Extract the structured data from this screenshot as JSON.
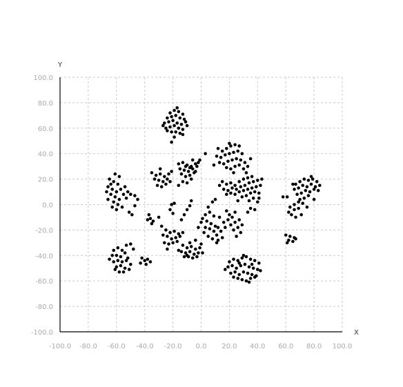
{
  "chart_data": {
    "type": "scatter",
    "title": "",
    "xlabel": "X",
    "ylabel": "Y",
    "xlim": [
      -100,
      100
    ],
    "ylim": [
      -100,
      100
    ],
    "x_ticks": [
      "-100.0",
      "-80.0",
      "-60.0",
      "-40.0",
      "-20.0",
      "0.0",
      "20.0",
      "40.0",
      "60.0",
      "80.0",
      "100.0"
    ],
    "y_ticks": [
      "100.0",
      "80.0",
      "60.0",
      "40.0",
      "20.0",
      "0.0",
      "-20.0",
      "-40.0",
      "-60.0",
      "-80.0",
      "-100.0"
    ],
    "grid": true,
    "legend": "none",
    "marker_color": "#000000",
    "grid_color": "#c8c8c8",
    "tick_color": "#aaaaaa",
    "points": [
      [
        -22,
        72
      ],
      [
        -19,
        74
      ],
      [
        -16,
        73
      ],
      [
        -13,
        71
      ],
      [
        -24,
        68
      ],
      [
        -21,
        69
      ],
      [
        -18,
        70
      ],
      [
        -15,
        68
      ],
      [
        -12,
        67
      ],
      [
        -26,
        64
      ],
      [
        -23,
        65
      ],
      [
        -20,
        66
      ],
      [
        -17,
        64
      ],
      [
        -14,
        63
      ],
      [
        -11,
        65
      ],
      [
        -25,
        60
      ],
      [
        -22,
        61
      ],
      [
        -19,
        62
      ],
      [
        -16,
        60
      ],
      [
        -13,
        59
      ],
      [
        -21,
        57
      ],
      [
        -18,
        57
      ],
      [
        -15,
        56
      ],
      [
        -19,
        53
      ],
      [
        -27,
        62
      ],
      [
        -10,
        62
      ],
      [
        -17,
        76
      ],
      [
        -21,
        49
      ],
      [
        -13,
        55
      ],
      [
        -24,
        58
      ],
      [
        -65,
        20
      ],
      [
        -62,
        18
      ],
      [
        -59,
        16
      ],
      [
        -66,
        14
      ],
      [
        -63,
        12
      ],
      [
        -60,
        10
      ],
      [
        -57,
        12
      ],
      [
        -64,
        8
      ],
      [
        -61,
        6
      ],
      [
        -58,
        4
      ],
      [
        -55,
        8
      ],
      [
        -52,
        10
      ],
      [
        -50,
        8
      ],
      [
        -62,
        2
      ],
      [
        -59,
        0
      ],
      [
        -56,
        -2
      ],
      [
        -63,
        -2
      ],
      [
        -66,
        4
      ],
      [
        -53,
        5
      ],
      [
        -47,
        7
      ],
      [
        -51,
        -6
      ],
      [
        -49,
        -8
      ],
      [
        -61,
        24
      ],
      [
        -58,
        22
      ],
      [
        -45,
        4
      ],
      [
        -47,
        -1
      ],
      [
        -67,
        10
      ],
      [
        -60,
        -4
      ],
      [
        -54,
        14
      ],
      [
        -64,
        16
      ],
      [
        -62,
        -36
      ],
      [
        -59,
        -34
      ],
      [
        -56,
        -36
      ],
      [
        -53,
        -32
      ],
      [
        -50,
        -31
      ],
      [
        -63,
        -40
      ],
      [
        -60,
        -40
      ],
      [
        -57,
        -41
      ],
      [
        -54,
        -38
      ],
      [
        -62,
        -45
      ],
      [
        -59,
        -44
      ],
      [
        -56,
        -45
      ],
      [
        -53,
        -44
      ],
      [
        -50,
        -47
      ],
      [
        -60,
        -49
      ],
      [
        -57,
        -48
      ],
      [
        -54,
        -50
      ],
      [
        -51,
        -51
      ],
      [
        -58,
        -53
      ],
      [
        -55,
        -53
      ],
      [
        -42,
        -42
      ],
      [
        -40,
        -44
      ],
      [
        -38,
        -43
      ],
      [
        -36,
        -45
      ],
      [
        -43,
        -46
      ],
      [
        -39,
        -47
      ],
      [
        -65,
        -43
      ],
      [
        -48,
        -35
      ],
      [
        -52,
        -42
      ],
      [
        -61,
        -51
      ],
      [
        -35,
        25
      ],
      [
        -32,
        23
      ],
      [
        -29,
        24
      ],
      [
        -26,
        22
      ],
      [
        -23,
        24
      ],
      [
        -33,
        20
      ],
      [
        -30,
        19
      ],
      [
        -27,
        18
      ],
      [
        -24,
        20
      ],
      [
        -31,
        15
      ],
      [
        -28,
        14
      ],
      [
        -25,
        16
      ],
      [
        -21,
        26
      ],
      [
        -22,
        18
      ],
      [
        -29,
        28
      ],
      [
        -16,
        32
      ],
      [
        -13,
        33
      ],
      [
        -10,
        31
      ],
      [
        -7,
        30
      ],
      [
        -4,
        32
      ],
      [
        -1,
        35
      ],
      [
        -15,
        28
      ],
      [
        -12,
        27
      ],
      [
        -9,
        26
      ],
      [
        -6,
        28
      ],
      [
        -3,
        30
      ],
      [
        -14,
        24
      ],
      [
        -11,
        22
      ],
      [
        -8,
        23
      ],
      [
        -5,
        25
      ],
      [
        -13,
        18
      ],
      [
        -10,
        17
      ],
      [
        -7,
        20
      ],
      [
        -2,
        33
      ],
      [
        3,
        40
      ],
      [
        -16,
        15
      ],
      [
        -6,
        35
      ],
      [
        -11,
        30
      ],
      [
        -8,
        29
      ],
      [
        -4,
        26
      ],
      [
        -37,
        -8
      ],
      [
        -36,
        -11
      ],
      [
        -34,
        -13
      ],
      [
        -38,
        -12
      ],
      [
        -35,
        -15
      ],
      [
        -30,
        -10
      ],
      [
        -25,
        -20
      ],
      [
        -22,
        -22
      ],
      [
        -19,
        -21
      ],
      [
        -16,
        -23
      ],
      [
        -24,
        -25
      ],
      [
        -21,
        -27
      ],
      [
        -18,
        -26
      ],
      [
        -15,
        -25
      ],
      [
        -26,
        -30
      ],
      [
        -23,
        -31
      ],
      [
        -20,
        -30
      ],
      [
        -24,
        -35
      ],
      [
        -17,
        -29
      ],
      [
        -28,
        -17
      ],
      [
        -13,
        -22
      ],
      [
        -27,
        -24
      ],
      [
        -20,
        -7
      ],
      [
        -22,
        -4
      ],
      [
        -14,
        -12
      ],
      [
        -12,
        -8
      ],
      [
        -10,
        -4
      ],
      [
        -8,
        -1
      ],
      [
        -7,
        3
      ],
      [
        -19,
        1
      ],
      [
        -21,
        0
      ],
      [
        -13,
        -32
      ],
      [
        -10,
        -34
      ],
      [
        -7,
        -33
      ],
      [
        -4,
        -35
      ],
      [
        -1,
        -34
      ],
      [
        -14,
        -37
      ],
      [
        -11,
        -38
      ],
      [
        -8,
        -37
      ],
      [
        -5,
        -39
      ],
      [
        -2,
        -38
      ],
      [
        -12,
        -41
      ],
      [
        -9,
        -41
      ],
      [
        -6,
        -42
      ],
      [
        -3,
        -41
      ],
      [
        -16,
        -36
      ],
      [
        0,
        -31
      ],
      [
        -8,
        -30
      ],
      [
        -4,
        -28
      ],
      [
        1,
        -38
      ],
      [
        -10,
        -40
      ],
      [
        1,
        -11
      ],
      [
        4,
        -13
      ],
      [
        7,
        -15
      ],
      [
        10,
        -17
      ],
      [
        3,
        -18
      ],
      [
        6,
        -19
      ],
      [
        9,
        -21
      ],
      [
        12,
        -18
      ],
      [
        2,
        -22
      ],
      [
        5,
        -25
      ],
      [
        8,
        -27
      ],
      [
        11,
        -24
      ],
      [
        14,
        -21
      ],
      [
        17,
        -18
      ],
      [
        15,
        -26
      ],
      [
        12,
        -28
      ],
      [
        16,
        -14
      ],
      [
        19,
        -12
      ],
      [
        22,
        -10
      ],
      [
        20,
        -8
      ],
      [
        24,
        -6
      ],
      [
        18,
        -5
      ],
      [
        21,
        -16
      ],
      [
        24,
        -14
      ],
      [
        27,
        -12
      ],
      [
        23,
        -20
      ],
      [
        26,
        -18
      ],
      [
        29,
        -16
      ],
      [
        28,
        -22
      ],
      [
        25,
        -25
      ],
      [
        -2,
        -18
      ],
      [
        0,
        -14
      ],
      [
        3,
        -8
      ],
      [
        6,
        -6
      ],
      [
        9,
        -9
      ],
      [
        5,
        -2
      ],
      [
        8,
        2
      ],
      [
        10,
        4
      ],
      [
        13,
        -10
      ],
      [
        11,
        -30
      ],
      [
        12,
        44
      ],
      [
        15,
        42
      ],
      [
        18,
        44
      ],
      [
        21,
        46
      ],
      [
        24,
        47
      ],
      [
        27,
        46
      ],
      [
        11,
        38
      ],
      [
        14,
        37
      ],
      [
        17,
        39
      ],
      [
        20,
        40
      ],
      [
        23,
        41
      ],
      [
        26,
        42
      ],
      [
        29,
        40
      ],
      [
        13,
        33
      ],
      [
        16,
        32
      ],
      [
        19,
        34
      ],
      [
        22,
        35
      ],
      [
        25,
        36
      ],
      [
        28,
        35
      ],
      [
        31,
        33
      ],
      [
        18,
        29
      ],
      [
        21,
        28
      ],
      [
        24,
        30
      ],
      [
        27,
        31
      ],
      [
        30,
        28
      ],
      [
        33,
        30
      ],
      [
        9,
        31
      ],
      [
        23,
        25
      ],
      [
        35,
        36
      ],
      [
        20,
        48
      ],
      [
        15,
        18
      ],
      [
        18,
        16
      ],
      [
        21,
        17
      ],
      [
        24,
        15
      ],
      [
        27,
        18
      ],
      [
        30,
        20
      ],
      [
        33,
        21
      ],
      [
        36,
        22
      ],
      [
        16,
        12
      ],
      [
        19,
        11
      ],
      [
        22,
        13
      ],
      [
        25,
        12
      ],
      [
        28,
        14
      ],
      [
        31,
        15
      ],
      [
        34,
        17
      ],
      [
        37,
        18
      ],
      [
        40,
        19
      ],
      [
        18,
        8
      ],
      [
        21,
        9
      ],
      [
        24,
        8
      ],
      [
        27,
        10
      ],
      [
        30,
        11
      ],
      [
        33,
        12
      ],
      [
        36,
        13
      ],
      [
        39,
        14
      ],
      [
        42,
        15
      ],
      [
        29,
        6
      ],
      [
        32,
        7
      ],
      [
        35,
        9
      ],
      [
        38,
        10
      ],
      [
        41,
        9
      ],
      [
        34,
        3
      ],
      [
        37,
        5
      ],
      [
        40,
        2
      ],
      [
        13,
        15
      ],
      [
        32,
        25
      ],
      [
        43,
        20
      ],
      [
        35,
        -3
      ],
      [
        38,
        -4
      ],
      [
        33,
        -6
      ],
      [
        41,
        5
      ],
      [
        26,
        3
      ],
      [
        20,
        -45
      ],
      [
        23,
        -43
      ],
      [
        26,
        -44
      ],
      [
        29,
        -42
      ],
      [
        32,
        -41
      ],
      [
        35,
        -43
      ],
      [
        38,
        -44
      ],
      [
        41,
        -46
      ],
      [
        19,
        -49
      ],
      [
        22,
        -48
      ],
      [
        25,
        -50
      ],
      [
        28,
        -48
      ],
      [
        31,
        -47
      ],
      [
        34,
        -49
      ],
      [
        37,
        -50
      ],
      [
        40,
        -51
      ],
      [
        21,
        -54
      ],
      [
        24,
        -53
      ],
      [
        27,
        -55
      ],
      [
        30,
        -53
      ],
      [
        33,
        -54
      ],
      [
        36,
        -55
      ],
      [
        39,
        -56
      ],
      [
        26,
        -58
      ],
      [
        29,
        -59
      ],
      [
        32,
        -60
      ],
      [
        35,
        -58
      ],
      [
        38,
        -57
      ],
      [
        30,
        -40
      ],
      [
        17,
        -51
      ],
      [
        42,
        -52
      ],
      [
        23,
        -57
      ],
      [
        34,
        -61
      ],
      [
        27,
        -46
      ],
      [
        36,
        -47
      ],
      [
        67,
        16
      ],
      [
        70,
        18
      ],
      [
        73,
        20
      ],
      [
        76,
        19
      ],
      [
        79,
        20
      ],
      [
        82,
        18
      ],
      [
        66,
        12
      ],
      [
        69,
        13
      ],
      [
        72,
        15
      ],
      [
        75,
        14
      ],
      [
        78,
        16
      ],
      [
        81,
        14
      ],
      [
        84,
        15
      ],
      [
        68,
        8
      ],
      [
        71,
        9
      ],
      [
        74,
        11
      ],
      [
        77,
        10
      ],
      [
        80,
        12
      ],
      [
        70,
        4
      ],
      [
        73,
        5
      ],
      [
        76,
        7
      ],
      [
        66,
        0
      ],
      [
        69,
        2
      ],
      [
        72,
        1
      ],
      [
        63,
        -2
      ],
      [
        66,
        -4
      ],
      [
        69,
        -3
      ],
      [
        64,
        -8
      ],
      [
        67,
        -10
      ],
      [
        71,
        -8
      ],
      [
        75,
        -2
      ],
      [
        80,
        4
      ],
      [
        83,
        11
      ],
      [
        58,
        6
      ],
      [
        61,
        6
      ],
      [
        62,
        -6
      ],
      [
        65,
        16
      ],
      [
        78,
        22
      ],
      [
        60,
        -24
      ],
      [
        63,
        -25
      ],
      [
        66,
        -26
      ],
      [
        62,
        -28
      ],
      [
        65,
        -29
      ],
      [
        61,
        -30
      ],
      [
        67,
        -27
      ]
    ]
  }
}
